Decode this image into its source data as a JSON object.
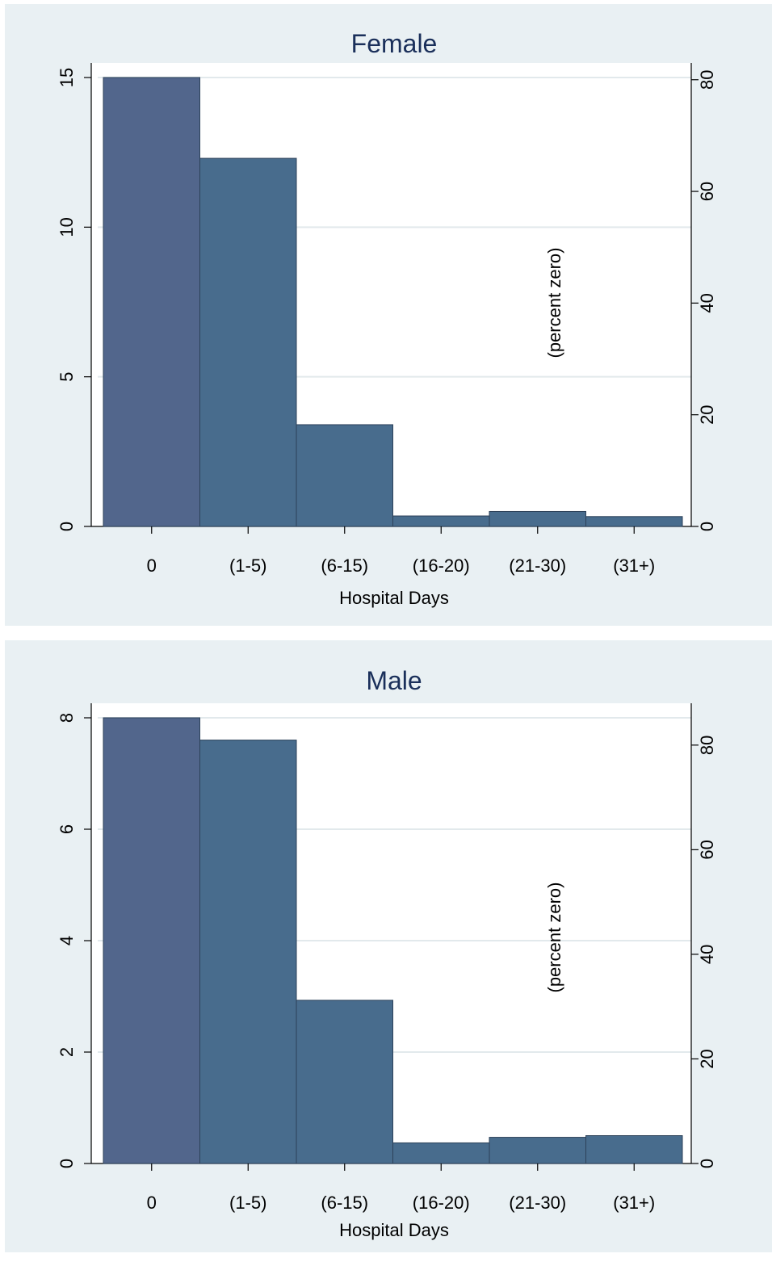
{
  "colors": {
    "panel_background": "#e9f0f3",
    "plot_background": "#ffffff",
    "gridline": "#e2e9ec",
    "bar_first": "#52668c",
    "bar_rest": "#486c8d",
    "bar_outline": "#2c4159",
    "axis": "#000000",
    "title": "#1a2f5a"
  },
  "chart_data": [
    {
      "type": "bar",
      "title": "Female",
      "xlabel": "Hospital Days",
      "ylabel": "",
      "annotation": "(percent zero)",
      "categories": [
        "0",
        "(1-5)",
        "(6-15)",
        "(16-20)",
        "(21-30)",
        "(31+)"
      ],
      "values": [
        15.0,
        12.3,
        3.4,
        0.35,
        0.5,
        0.33
      ],
      "ylim": [
        0,
        15
      ],
      "yticks": [
        0,
        5,
        10,
        15
      ],
      "y2lim": [
        0,
        83
      ],
      "y2ticks": [
        0,
        20,
        40,
        60,
        80
      ],
      "grid": true
    },
    {
      "type": "bar",
      "title": "Male",
      "xlabel": "Hospital Days",
      "ylabel": "",
      "annotation": "(percent zero)",
      "categories": [
        "0",
        "(1-5)",
        "(6-15)",
        "(16-20)",
        "(21-30)",
        "(31+)"
      ],
      "values": [
        8.0,
        7.6,
        2.93,
        0.37,
        0.47,
        0.5
      ],
      "ylim": [
        0,
        8
      ],
      "yticks": [
        0,
        2,
        4,
        6,
        8
      ],
      "y2lim": [
        0,
        88
      ],
      "y2ticks": [
        0,
        20,
        40,
        60,
        80
      ],
      "grid": true
    }
  ]
}
